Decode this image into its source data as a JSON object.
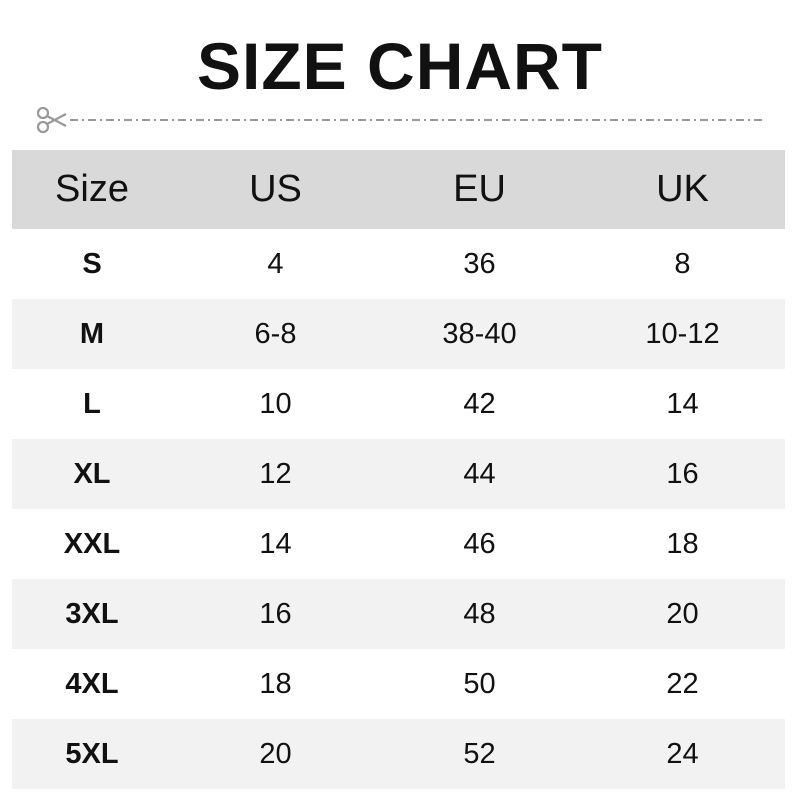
{
  "title": "SIZE CHART",
  "icons": {
    "cut_line": "scissors-icon"
  },
  "colors": {
    "header_bg": "#d9d9d9",
    "alt_row_bg": "#f2f2f2",
    "cut_line": "#999999"
  },
  "table": {
    "headers": [
      "Size",
      "US",
      "EU",
      "UK"
    ],
    "rows": [
      [
        "S",
        "4",
        "36",
        "8"
      ],
      [
        "M",
        "6-8",
        "38-40",
        "10-12"
      ],
      [
        "L",
        "10",
        "42",
        "14"
      ],
      [
        "XL",
        "12",
        "44",
        "16"
      ],
      [
        "XXL",
        "14",
        "46",
        "18"
      ],
      [
        "3XL",
        "16",
        "48",
        "20"
      ],
      [
        "4XL",
        "18",
        "50",
        "22"
      ],
      [
        "5XL",
        "20",
        "52",
        "24"
      ]
    ]
  }
}
